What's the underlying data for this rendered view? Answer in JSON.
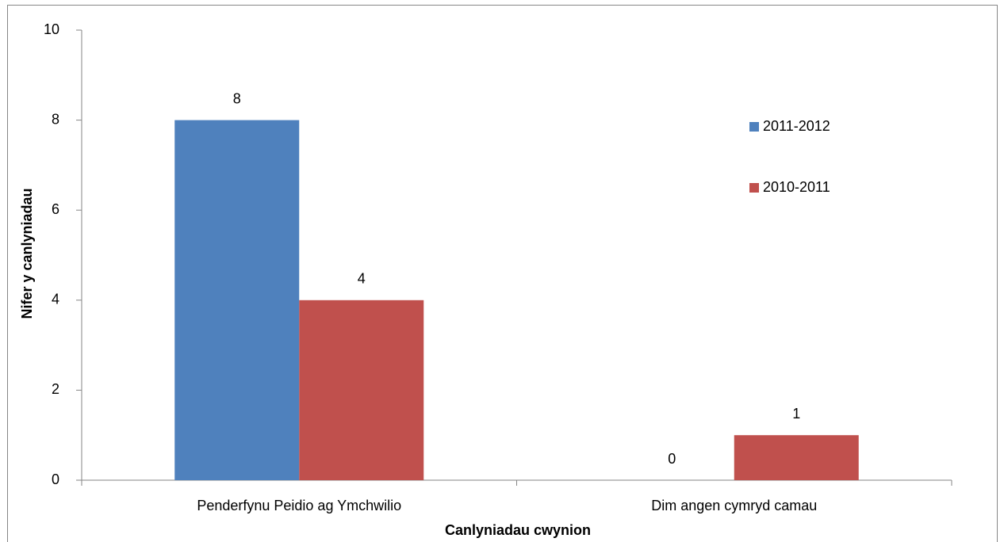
{
  "chart_data": {
    "type": "bar",
    "categories": [
      "Penderfynu Peidio ag Ymchwilio",
      "Dim angen cymryd camau"
    ],
    "series": [
      {
        "name": "2011-2012",
        "color": "#4f81bd",
        "values": [
          8,
          0
        ]
      },
      {
        "name": "2010-2011",
        "color": "#c0504d",
        "values": [
          4,
          1
        ]
      }
    ],
    "ylim": [
      0,
      10
    ],
    "yticks": [
      0,
      2,
      4,
      6,
      8,
      10
    ],
    "ylabel": "Nifer y canlyniadau",
    "xlabel": "Canlyniadau cwynion",
    "legend": "right",
    "grid": false
  }
}
